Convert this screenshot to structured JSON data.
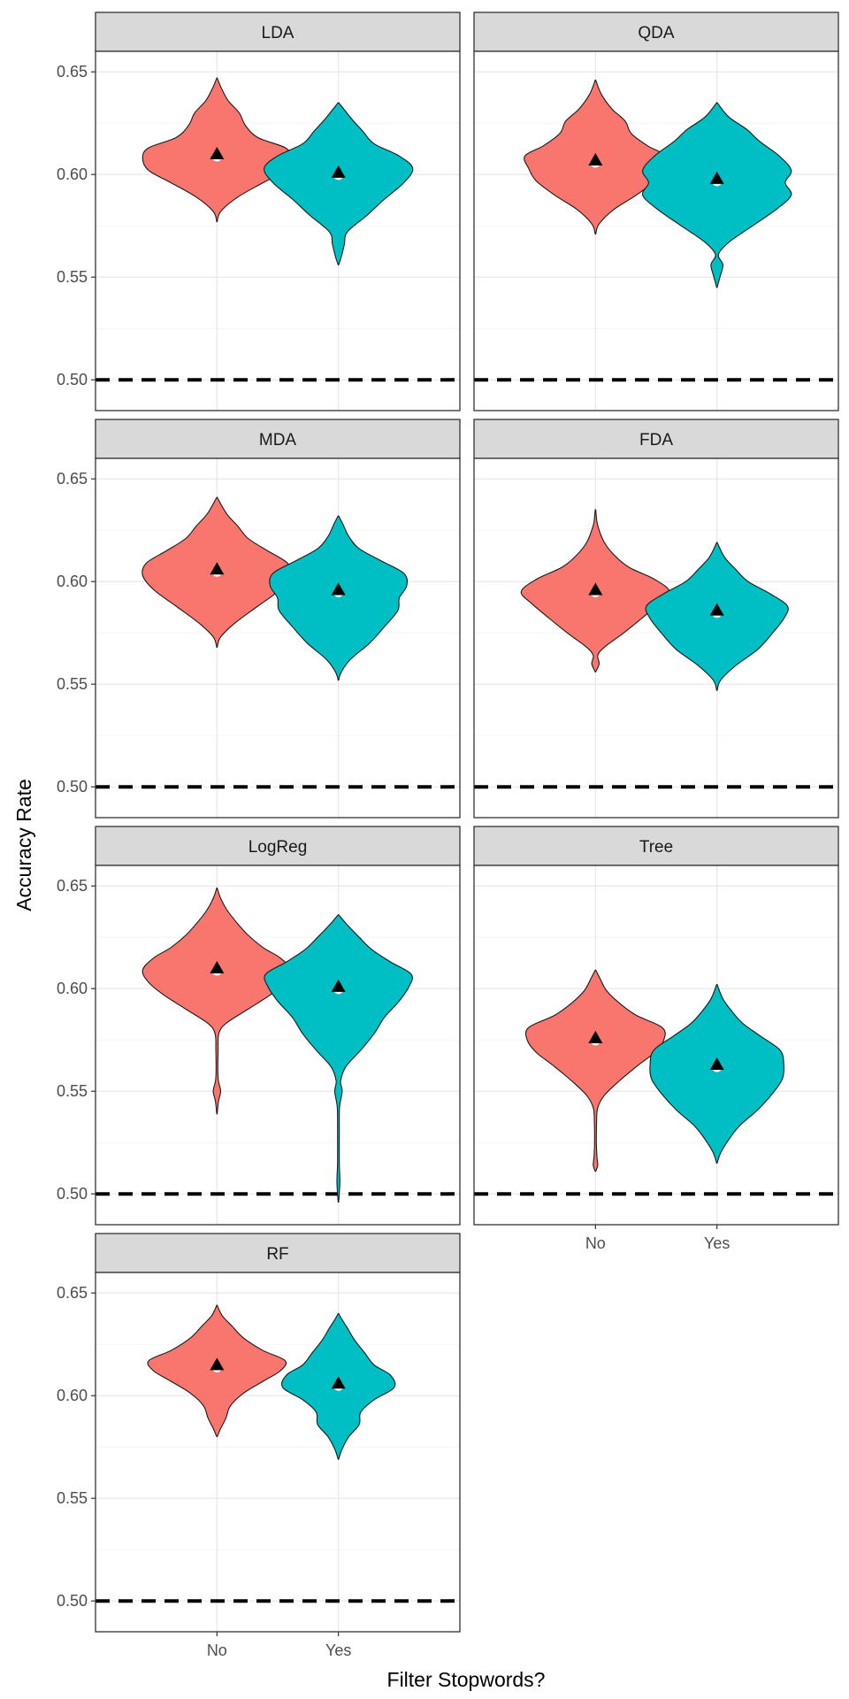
{
  "chart_data": {
    "type": "violin",
    "xlabel": "Filter Stopwords?",
    "ylabel": "Accuracy Rate",
    "ylim": [
      0.485,
      0.66
    ],
    "y_ticks": [
      "0.50",
      "0.55",
      "0.60",
      "0.65"
    ],
    "y_tick_values": [
      0.5,
      0.55,
      0.6,
      0.65
    ],
    "categories": [
      "No",
      "Yes"
    ],
    "fill_colors": {
      "No": "#F8766D",
      "Yes": "#00BFC4"
    },
    "reference_line": 0.5,
    "grid": true,
    "mean_marker": "black triangle",
    "panels": [
      {
        "name": "LDA",
        "groups": [
          {
            "category": "No",
            "mean": 0.61,
            "min": 0.577,
            "max": 0.647,
            "profile": [
              [
                0.577,
                0.003
              ],
              [
                0.582,
                0.05
              ],
              [
                0.589,
                0.28
              ],
              [
                0.596,
                0.62
              ],
              [
                0.602,
                0.92
              ],
              [
                0.608,
                1.0
              ],
              [
                0.613,
                0.92
              ],
              [
                0.618,
                0.55
              ],
              [
                0.624,
                0.38
              ],
              [
                0.63,
                0.3
              ],
              [
                0.636,
                0.15
              ],
              [
                0.642,
                0.06
              ],
              [
                0.647,
                0.003
              ]
            ]
          },
          {
            "category": "Yes",
            "mean": 0.601,
            "min": 0.556,
            "max": 0.635,
            "profile": [
              [
                0.556,
                0.003
              ],
              [
                0.56,
                0.04
              ],
              [
                0.566,
                0.08
              ],
              [
                0.572,
                0.12
              ],
              [
                0.58,
                0.38
              ],
              [
                0.588,
                0.62
              ],
              [
                0.596,
                0.88
              ],
              [
                0.603,
                1.0
              ],
              [
                0.609,
                0.82
              ],
              [
                0.615,
                0.48
              ],
              [
                0.621,
                0.33
              ],
              [
                0.627,
                0.18
              ],
              [
                0.632,
                0.07
              ],
              [
                0.635,
                0.003
              ]
            ]
          }
        ]
      },
      {
        "name": "QDA",
        "groups": [
          {
            "category": "No",
            "mean": 0.607,
            "min": 0.571,
            "max": 0.646,
            "profile": [
              [
                0.571,
                0.003
              ],
              [
                0.576,
                0.05
              ],
              [
                0.583,
                0.25
              ],
              [
                0.59,
                0.55
              ],
              [
                0.597,
                0.8
              ],
              [
                0.603,
                0.9
              ],
              [
                0.609,
                0.95
              ],
              [
                0.614,
                0.7
              ],
              [
                0.62,
                0.48
              ],
              [
                0.626,
                0.4
              ],
              [
                0.632,
                0.22
              ],
              [
                0.639,
                0.08
              ],
              [
                0.646,
                0.003
              ]
            ]
          },
          {
            "category": "Yes",
            "mean": 0.598,
            "min": 0.545,
            "max": 0.635,
            "profile": [
              [
                0.545,
                0.003
              ],
              [
                0.55,
                0.04
              ],
              [
                0.556,
                0.08
              ],
              [
                0.561,
                0.02
              ],
              [
                0.567,
                0.16
              ],
              [
                0.575,
                0.48
              ],
              [
                0.583,
                0.8
              ],
              [
                0.59,
                1.0
              ],
              [
                0.596,
                0.92
              ],
              [
                0.602,
                1.0
              ],
              [
                0.609,
                0.84
              ],
              [
                0.616,
                0.58
              ],
              [
                0.622,
                0.4
              ],
              [
                0.628,
                0.16
              ],
              [
                0.635,
                0.003
              ]
            ]
          }
        ]
      },
      {
        "name": "MDA",
        "groups": [
          {
            "category": "No",
            "mean": 0.606,
            "min": 0.568,
            "max": 0.641,
            "profile": [
              [
                0.568,
                0.003
              ],
              [
                0.573,
                0.05
              ],
              [
                0.58,
                0.25
              ],
              [
                0.588,
                0.55
              ],
              [
                0.596,
                0.85
              ],
              [
                0.603,
                1.0
              ],
              [
                0.609,
                0.95
              ],
              [
                0.615,
                0.68
              ],
              [
                0.621,
                0.42
              ],
              [
                0.627,
                0.28
              ],
              [
                0.633,
                0.13
              ],
              [
                0.641,
                0.003
              ]
            ]
          },
          {
            "category": "Yes",
            "mean": 0.596,
            "min": 0.552,
            "max": 0.632,
            "profile": [
              [
                0.552,
                0.003
              ],
              [
                0.556,
                0.04
              ],
              [
                0.562,
                0.16
              ],
              [
                0.57,
                0.42
              ],
              [
                0.578,
                0.62
              ],
              [
                0.586,
                0.8
              ],
              [
                0.592,
                0.82
              ],
              [
                0.598,
                0.92
              ],
              [
                0.604,
                0.88
              ],
              [
                0.61,
                0.58
              ],
              [
                0.616,
                0.28
              ],
              [
                0.622,
                0.14
              ],
              [
                0.628,
                0.06
              ],
              [
                0.632,
                0.003
              ]
            ]
          }
        ]
      },
      {
        "name": "FDA",
        "groups": [
          {
            "category": "No",
            "mean": 0.596,
            "min": 0.556,
            "max": 0.635,
            "profile": [
              [
                0.556,
                0.003
              ],
              [
                0.56,
                0.05
              ],
              [
                0.564,
                0.03
              ],
              [
                0.568,
                0.12
              ],
              [
                0.575,
                0.38
              ],
              [
                0.582,
                0.62
              ],
              [
                0.589,
                0.85
              ],
              [
                0.595,
                1.0
              ],
              [
                0.601,
                0.8
              ],
              [
                0.607,
                0.45
              ],
              [
                0.613,
                0.25
              ],
              [
                0.619,
                0.12
              ],
              [
                0.625,
                0.05
              ],
              [
                0.629,
                0.02
              ],
              [
                0.635,
                0.003
              ]
            ]
          },
          {
            "category": "Yes",
            "mean": 0.586,
            "min": 0.547,
            "max": 0.619,
            "profile": [
              [
                0.547,
                0.003
              ],
              [
                0.552,
                0.05
              ],
              [
                0.559,
                0.25
              ],
              [
                0.567,
                0.55
              ],
              [
                0.575,
                0.75
              ],
              [
                0.582,
                0.9
              ],
              [
                0.588,
                0.95
              ],
              [
                0.594,
                0.72
              ],
              [
                0.6,
                0.42
              ],
              [
                0.606,
                0.25
              ],
              [
                0.612,
                0.1
              ],
              [
                0.619,
                0.003
              ]
            ]
          }
        ]
      },
      {
        "name": "LogReg",
        "groups": [
          {
            "category": "No",
            "mean": 0.61,
            "min": 0.539,
            "max": 0.649,
            "profile": [
              [
                0.539,
                0.003
              ],
              [
                0.545,
                0.02
              ],
              [
                0.55,
                0.05
              ],
              [
                0.555,
                0.02
              ],
              [
                0.56,
                0.012
              ],
              [
                0.57,
                0.015
              ],
              [
                0.578,
                0.025
              ],
              [
                0.583,
                0.12
              ],
              [
                0.59,
                0.42
              ],
              [
                0.597,
                0.72
              ],
              [
                0.603,
                0.92
              ],
              [
                0.609,
                1.0
              ],
              [
                0.615,
                0.85
              ],
              [
                0.62,
                0.62
              ],
              [
                0.626,
                0.42
              ],
              [
                0.632,
                0.27
              ],
              [
                0.638,
                0.14
              ],
              [
                0.644,
                0.05
              ],
              [
                0.649,
                0.003
              ]
            ]
          },
          {
            "category": "Yes",
            "mean": 0.601,
            "min": 0.496,
            "max": 0.636,
            "profile": [
              [
                0.496,
                0.003
              ],
              [
                0.502,
                0.015
              ],
              [
                0.507,
                0.02
              ],
              [
                0.515,
                0.012
              ],
              [
                0.53,
                0.012
              ],
              [
                0.542,
                0.015
              ],
              [
                0.55,
                0.05
              ],
              [
                0.555,
                0.03
              ],
              [
                0.562,
                0.1
              ],
              [
                0.57,
                0.3
              ],
              [
                0.578,
                0.48
              ],
              [
                0.586,
                0.62
              ],
              [
                0.594,
                0.82
              ],
              [
                0.601,
                0.95
              ],
              [
                0.607,
                0.98
              ],
              [
                0.613,
                0.7
              ],
              [
                0.619,
                0.45
              ],
              [
                0.625,
                0.28
              ],
              [
                0.631,
                0.12
              ],
              [
                0.636,
                0.003
              ]
            ]
          }
        ]
      },
      {
        "name": "Tree",
        "groups": [
          {
            "category": "No",
            "mean": 0.576,
            "min": 0.511,
            "max": 0.609,
            "profile": [
              [
                0.511,
                0.003
              ],
              [
                0.514,
                0.03
              ],
              [
                0.518,
                0.02
              ],
              [
                0.525,
                0.012
              ],
              [
                0.535,
                0.015
              ],
              [
                0.542,
                0.03
              ],
              [
                0.548,
                0.12
              ],
              [
                0.555,
                0.32
              ],
              [
                0.562,
                0.55
              ],
              [
                0.569,
                0.8
              ],
              [
                0.575,
                0.92
              ],
              [
                0.581,
                0.9
              ],
              [
                0.587,
                0.55
              ],
              [
                0.593,
                0.32
              ],
              [
                0.599,
                0.15
              ],
              [
                0.605,
                0.06
              ],
              [
                0.609,
                0.003
              ]
            ]
          },
          {
            "category": "Yes",
            "mean": 0.563,
            "min": 0.515,
            "max": 0.602,
            "profile": [
              [
                0.515,
                0.003
              ],
              [
                0.52,
                0.05
              ],
              [
                0.526,
                0.15
              ],
              [
                0.533,
                0.3
              ],
              [
                0.541,
                0.55
              ],
              [
                0.549,
                0.75
              ],
              [
                0.556,
                0.88
              ],
              [
                0.563,
                0.9
              ],
              [
                0.57,
                0.85
              ],
              [
                0.577,
                0.58
              ],
              [
                0.583,
                0.35
              ],
              [
                0.589,
                0.2
              ],
              [
                0.595,
                0.08
              ],
              [
                0.602,
                0.003
              ]
            ]
          }
        ]
      },
      {
        "name": "RF",
        "groups": [
          {
            "category": "No",
            "mean": 0.615,
            "min": 0.58,
            "max": 0.644,
            "profile": [
              [
                0.58,
                0.003
              ],
              [
                0.584,
                0.05
              ],
              [
                0.589,
                0.12
              ],
              [
                0.595,
                0.18
              ],
              [
                0.601,
                0.35
              ],
              [
                0.607,
                0.62
              ],
              [
                0.612,
                0.85
              ],
              [
                0.617,
                0.92
              ],
              [
                0.622,
                0.62
              ],
              [
                0.628,
                0.36
              ],
              [
                0.634,
                0.2
              ],
              [
                0.639,
                0.07
              ],
              [
                0.644,
                0.003
              ]
            ]
          },
          {
            "category": "Yes",
            "mean": 0.606,
            "min": 0.569,
            "max": 0.64,
            "profile": [
              [
                0.569,
                0.003
              ],
              [
                0.574,
                0.05
              ],
              [
                0.58,
                0.14
              ],
              [
                0.586,
                0.28
              ],
              [
                0.592,
                0.3
              ],
              [
                0.598,
                0.48
              ],
              [
                0.604,
                0.75
              ],
              [
                0.61,
                0.7
              ],
              [
                0.615,
                0.48
              ],
              [
                0.621,
                0.35
              ],
              [
                0.627,
                0.22
              ],
              [
                0.633,
                0.12
              ],
              [
                0.637,
                0.05
              ],
              [
                0.64,
                0.003
              ]
            ]
          }
        ]
      }
    ]
  }
}
